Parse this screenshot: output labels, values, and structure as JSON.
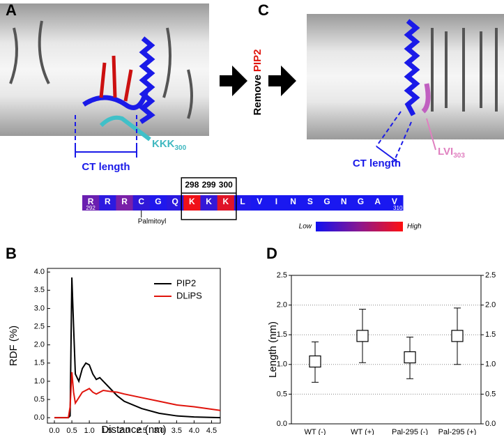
{
  "panels": {
    "a": {
      "label": "A",
      "annotation": "KKK",
      "annotation_sub": "300",
      "length_label": "CT length"
    },
    "c": {
      "label": "C",
      "annotation": "LVI",
      "annotation_sub": "303",
      "length_label": "CT length"
    },
    "arrow": {
      "word": "Remove",
      "lipid": "PIP2"
    },
    "sequence": {
      "residues": [
        "R",
        "R",
        "R",
        "C",
        "G",
        "Q",
        "K",
        "K",
        "K",
        "L",
        "V",
        "I",
        "N",
        "S",
        "G",
        "N",
        "G",
        "A",
        "V"
      ],
      "colors": [
        "#6a1fb0",
        "#2d1ae0",
        "#7a20a8",
        "#3018d8",
        "#2018ec",
        "#2a18e0",
        "#f01018",
        "#3418d8",
        "#e01428",
        "#2018ec",
        "#1a18f0",
        "#1a18f0",
        "#1a18f0",
        "#1a18f0",
        "#1a18f0",
        "#1a18f0",
        "#1a18f0",
        "#1a18f0",
        "#1a18f0"
      ],
      "start": "292",
      "end": "310",
      "box_numbers": [
        "298",
        "299",
        "300"
      ],
      "modification": "Palmitoyl",
      "scale_low": "Low",
      "scale_high": "High"
    }
  },
  "chart_data": [
    {
      "type": "line",
      "panel": "B",
      "xlabel": "Distance (nm)",
      "ylabel": "RDF (%)",
      "x": [
        0,
        0.4,
        0.45,
        0.5,
        0.55,
        0.6,
        0.7,
        0.8,
        0.9,
        1.0,
        1.1,
        1.2,
        1.3,
        1.4,
        1.6,
        1.8,
        2.0,
        2.5,
        3.0,
        3.5,
        4.0,
        4.75
      ],
      "series": [
        {
          "name": "PIP2",
          "color": "#000000",
          "values": [
            0,
            0,
            0.05,
            3.85,
            2.5,
            1.2,
            1.0,
            1.35,
            1.5,
            1.45,
            1.2,
            1.05,
            1.1,
            1.0,
            0.8,
            0.6,
            0.45,
            0.25,
            0.12,
            0.05,
            0.02,
            0
          ]
        },
        {
          "name": "DLiPS",
          "color": "#e0140c",
          "values": [
            0,
            0,
            0.3,
            1.25,
            0.7,
            0.4,
            0.55,
            0.7,
            0.75,
            0.8,
            0.7,
            0.65,
            0.7,
            0.75,
            0.72,
            0.7,
            0.65,
            0.55,
            0.45,
            0.35,
            0.3,
            0.2
          ]
        }
      ],
      "xlim": [
        -0.2,
        4.75
      ],
      "ylim": [
        -0.15,
        4.1
      ],
      "xticks": [
        {
          "value": 0,
          "label": "0.0"
        },
        0.5,
        {
          "value": 1,
          "label": "1.0"
        },
        1.5,
        {
          "value": 2,
          "label": "2.0"
        },
        2.5,
        {
          "value": 3,
          "label": "3.0"
        },
        3.5,
        {
          "value": 4,
          "label": "4.0"
        },
        4.5
      ],
      "yticks": [
        {
          "value": 0,
          "label": "0.0"
        },
        0.5,
        {
          "value": 1,
          "label": "1.0"
        },
        1.5,
        {
          "value": 2,
          "label": "2.0"
        },
        2.5,
        {
          "value": 3,
          "label": "3.0"
        },
        3.5,
        {
          "value": 4,
          "label": "4.0"
        }
      ],
      "legend": "upper right"
    },
    {
      "type": "errorbar",
      "panel": "D",
      "ylabel": "Length (nm)",
      "categories": [
        "WT (-)",
        "WT (+)",
        "Pal-295 (-)",
        "Pal-295 (+)"
      ],
      "values": [
        1.05,
        1.48,
        1.12,
        1.48
      ],
      "lower": [
        0.7,
        1.03,
        0.76,
        1.0
      ],
      "upper": [
        1.38,
        1.93,
        1.46,
        1.95
      ],
      "ylim": [
        0,
        2.5
      ],
      "yticks": [
        {
          "value": 0,
          "label": "0.0"
        },
        0.5,
        {
          "value": 1,
          "label": "1.0"
        },
        1.5,
        {
          "value": 2,
          "label": "2.0"
        },
        2.5
      ],
      "y2lim": [
        0,
        2.5
      ],
      "y2ticks": [
        {
          "value": 0,
          "label": "0.0"
        },
        0.5,
        {
          "value": 1,
          "label": "1.0"
        },
        1.5,
        {
          "value": 2,
          "label": "2.0"
        },
        2.5
      ],
      "grid": true
    }
  ]
}
